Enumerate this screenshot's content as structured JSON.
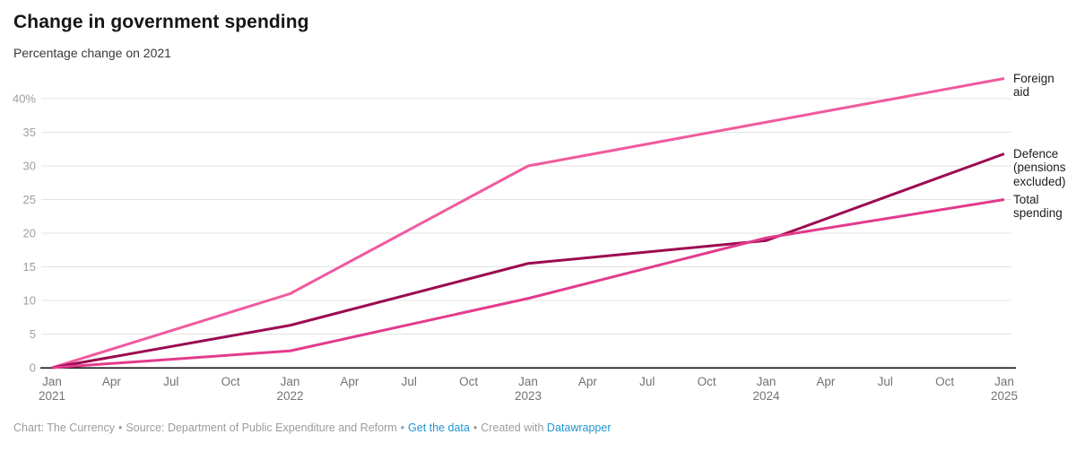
{
  "header": {
    "title": "Change in government spending",
    "subtitle": "Percentage change on 2021"
  },
  "chart_data": {
    "type": "line",
    "title": "Change in government spending",
    "subtitle": "Percentage change on 2021",
    "xlabel": "",
    "ylabel": "Percentage change on 2021 (%)",
    "ylim": [
      0,
      40
    ],
    "grid": true,
    "legend_position": "right-edge-labels",
    "categories": [
      "Jan 2021",
      "Jan 2022",
      "Jan 2023",
      "Jan 2024",
      "Jan 2025"
    ],
    "series": [
      {
        "name": "Foreign aid",
        "color": "#f05a9e",
        "values": [
          0,
          11,
          30,
          36.5,
          43
        ]
      },
      {
        "name": "Defence (pensions excluded)",
        "color": "#9c0b51",
        "values": [
          0,
          6.3,
          15.5,
          18.9,
          31.8
        ]
      },
      {
        "name": "Total spending",
        "color": "#e23b8c",
        "values": [
          0,
          2.5,
          10.3,
          19.3,
          25
        ]
      }
    ],
    "y_ticks": [
      {
        "v": 0,
        "label": "0"
      },
      {
        "v": 5,
        "label": "5"
      },
      {
        "v": 10,
        "label": "10"
      },
      {
        "v": 15,
        "label": "15"
      },
      {
        "v": 20,
        "label": "20"
      },
      {
        "v": 25,
        "label": "25"
      },
      {
        "v": 30,
        "label": "30"
      },
      {
        "v": 35,
        "label": "35"
      },
      {
        "v": 40,
        "label": "40%"
      }
    ],
    "x_ticks": [
      {
        "month": "Jan",
        "year": "2021"
      },
      {
        "month": "Apr"
      },
      {
        "month": "Jul"
      },
      {
        "month": "Oct"
      },
      {
        "month": "Jan",
        "year": "2022"
      },
      {
        "month": "Apr"
      },
      {
        "month": "Jul"
      },
      {
        "month": "Oct"
      },
      {
        "month": "Jan",
        "year": "2023"
      },
      {
        "month": "Apr"
      },
      {
        "month": "Jul"
      },
      {
        "month": "Oct"
      },
      {
        "month": "Jan",
        "year": "2024"
      },
      {
        "month": "Apr"
      },
      {
        "month": "Jul"
      },
      {
        "month": "Oct"
      },
      {
        "month": "Jan",
        "year": "2025"
      }
    ],
    "colors": {
      "gridline": "#e3e3e3",
      "baseline": "#0b0b0b",
      "link_blue": "#1e96d2"
    }
  },
  "footer": {
    "chart_credit": "Chart: The Currency",
    "source": "Source: Department of Public Expenditure and Reform",
    "get_data_link": "Get the data",
    "created_with": "Created with",
    "datawrapper_link": "Datawrapper",
    "separator": "•"
  }
}
